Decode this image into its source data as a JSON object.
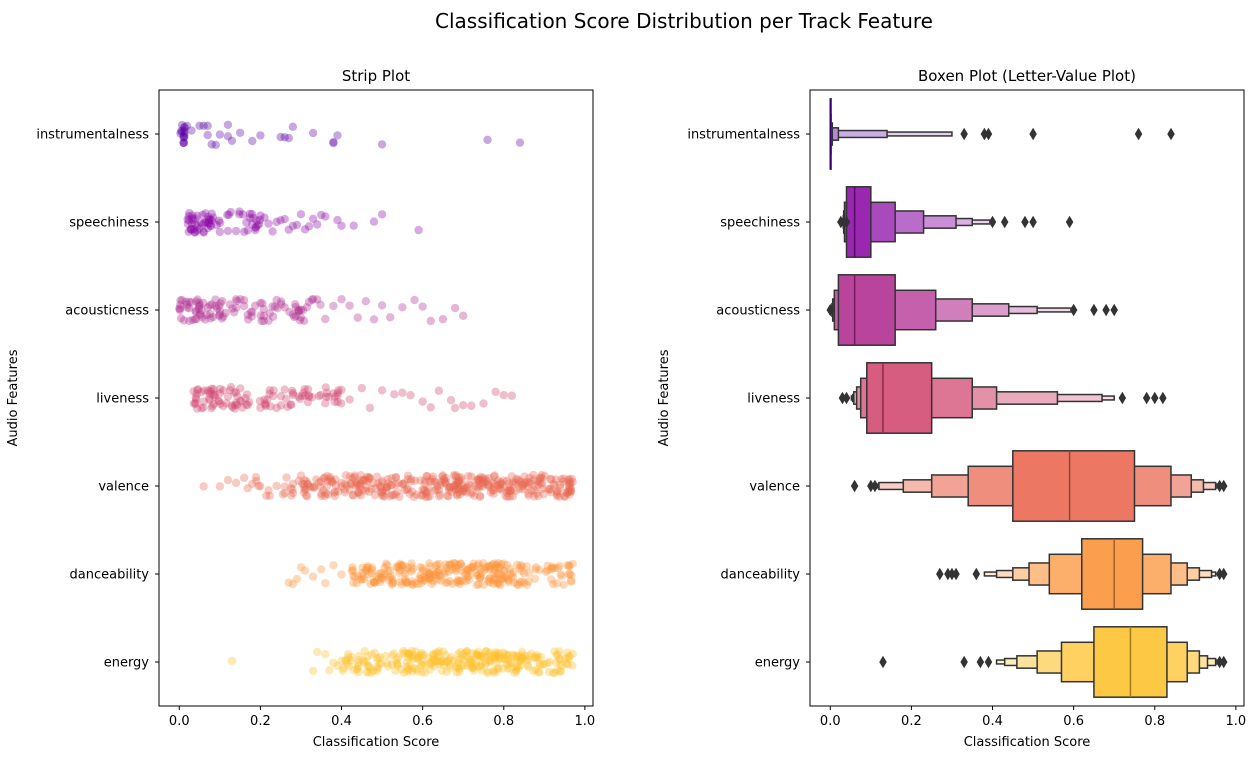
{
  "suptitle": "Classification Score Distribution per Track Feature",
  "chart_data": [
    {
      "type": "scatter",
      "subtype": "strip",
      "title": "Strip Plot",
      "xlabel": "Classification Score",
      "ylabel": "Audio Features",
      "xlim": [
        -0.05,
        1.02
      ],
      "xticks": [
        "0.0",
        "0.2",
        "0.4",
        "0.6",
        "0.8",
        "1.0"
      ],
      "grid": false,
      "categories": [
        "instrumentalness",
        "speechiness",
        "acousticness",
        "liveness",
        "valence",
        "danceability",
        "energy"
      ],
      "colors": [
        "#5b02a3",
        "#8b0aa5",
        "#b02a8f",
        "#d0466f",
        "#e9664f",
        "#fb9237",
        "#fdc12a"
      ],
      "point_alpha": 0.35,
      "series": [
        {
          "category": "instrumentalness",
          "dense": [
            [
              0.0,
              0.02,
              0.95
            ]
          ],
          "points": [
            0.03,
            0.05,
            0.06,
            0.07,
            0.07,
            0.08,
            0.09,
            0.1,
            0.12,
            0.12,
            0.13,
            0.15,
            0.18,
            0.2,
            0.25,
            0.26,
            0.27,
            0.28,
            0.33,
            0.38,
            0.38,
            0.39,
            0.5,
            0.76,
            0.84
          ]
        },
        {
          "category": "speechiness",
          "dense": [
            [
              0.02,
              0.1,
              0.7
            ],
            [
              0.1,
              0.2,
              0.25
            ]
          ],
          "points": [
            0.04,
            0.05,
            0.06,
            0.08,
            0.1,
            0.12,
            0.14,
            0.16,
            0.18,
            0.2,
            0.21,
            0.22,
            0.23,
            0.24,
            0.25,
            0.26,
            0.27,
            0.28,
            0.29,
            0.3,
            0.31,
            0.32,
            0.33,
            0.34,
            0.35,
            0.36,
            0.39,
            0.4,
            0.43,
            0.48,
            0.5,
            0.59
          ]
        },
        {
          "category": "acousticness",
          "dense": [
            [
              0.0,
              0.12,
              0.55
            ],
            [
              0.12,
              0.35,
              0.25
            ]
          ],
          "points": [
            0.02,
            0.05,
            0.08,
            0.1,
            0.14,
            0.16,
            0.18,
            0.2,
            0.22,
            0.24,
            0.26,
            0.28,
            0.3,
            0.32,
            0.34,
            0.36,
            0.38,
            0.4,
            0.42,
            0.44,
            0.46,
            0.48,
            0.5,
            0.52,
            0.55,
            0.58,
            0.6,
            0.62,
            0.65,
            0.68,
            0.7
          ]
        },
        {
          "category": "liveness",
          "dense": [
            [
              0.03,
              0.15,
              0.5
            ],
            [
              0.15,
              0.4,
              0.3
            ]
          ],
          "points": [
            0.04,
            0.06,
            0.08,
            0.1,
            0.12,
            0.14,
            0.2,
            0.24,
            0.28,
            0.32,
            0.36,
            0.4,
            0.42,
            0.45,
            0.47,
            0.5,
            0.53,
            0.55,
            0.57,
            0.6,
            0.62,
            0.64,
            0.67,
            0.68,
            0.7,
            0.72,
            0.75,
            0.78,
            0.8,
            0.82
          ]
        },
        {
          "category": "valence",
          "dense": [
            [
              0.3,
              0.97,
              0.8
            ],
            [
              0.15,
              0.3,
              0.1
            ]
          ],
          "points": [
            0.06,
            0.1,
            0.12,
            0.14,
            0.16,
            0.18,
            0.2,
            0.22,
            0.24,
            0.26,
            0.28,
            0.3,
            0.95,
            0.96,
            0.97
          ]
        },
        {
          "category": "danceability",
          "dense": [
            [
              0.42,
              0.97,
              0.55
            ],
            [
              0.55,
              0.85,
              0.3
            ]
          ],
          "points": [
            0.27,
            0.28,
            0.29,
            0.3,
            0.31,
            0.33,
            0.35,
            0.36,
            0.38,
            0.4,
            0.96,
            0.97
          ]
        },
        {
          "category": "energy",
          "dense": [
            [
              0.4,
              0.97,
              0.55
            ],
            [
              0.55,
              0.9,
              0.3
            ]
          ],
          "points": [
            0.13,
            0.33,
            0.34,
            0.36,
            0.37,
            0.38,
            0.39,
            0.96,
            0.97
          ]
        }
      ]
    },
    {
      "type": "boxen",
      "title": "Boxen Plot (Letter-Value Plot)",
      "xlabel": "Classification Score",
      "ylabel": "Audio Features",
      "xlim": [
        -0.05,
        1.02
      ],
      "xticks": [
        "0.0",
        "0.2",
        "0.4",
        "0.6",
        "0.8",
        "1.0"
      ],
      "grid": false,
      "categories": [
        "instrumentalness",
        "speechiness",
        "acousticness",
        "liveness",
        "valence",
        "danceability",
        "energy"
      ],
      "colors": [
        "#5b02a3",
        "#8b0aa5",
        "#b02a8f",
        "#d0466f",
        "#e9664f",
        "#fb9237",
        "#fdc12a"
      ],
      "series": [
        {
          "category": "instrumentalness",
          "median": 0.0,
          "boxes": [
            [
              0.0,
              0.0
            ],
            [
              0.0,
              0.0
            ],
            [
              0.0,
              0.005
            ],
            [
              0.0,
              0.02
            ],
            [
              0.0,
              0.14
            ],
            [
              0.0,
              0.3
            ]
          ],
          "outliers": [
            0.33,
            0.38,
            0.39,
            0.5,
            0.76,
            0.84
          ]
        },
        {
          "category": "speechiness",
          "median": 0.06,
          "boxes": [
            [
              0.04,
              0.1
            ],
            [
              0.035,
              0.16
            ],
            [
              0.033,
              0.23
            ],
            [
              0.032,
              0.31
            ],
            [
              0.031,
              0.35
            ],
            [
              0.03,
              0.4
            ]
          ],
          "outliers": [
            0.026,
            0.04,
            0.4,
            0.43,
            0.48,
            0.5,
            0.59
          ]
        },
        {
          "category": "acousticness",
          "median": 0.06,
          "boxes": [
            [
              0.02,
              0.16
            ],
            [
              0.01,
              0.26
            ],
            [
              0.006,
              0.35
            ],
            [
              0.004,
              0.44
            ],
            [
              0.003,
              0.51
            ],
            [
              0.002,
              0.6
            ]
          ],
          "outliers": [
            0.0,
            0.6,
            0.65,
            0.68,
            0.7
          ]
        },
        {
          "category": "liveness",
          "median": 0.13,
          "boxes": [
            [
              0.09,
              0.25
            ],
            [
              0.075,
              0.35
            ],
            [
              0.065,
              0.41
            ],
            [
              0.058,
              0.56
            ],
            [
              0.055,
              0.67
            ],
            [
              0.052,
              0.7
            ]
          ],
          "outliers": [
            0.03,
            0.04,
            0.72,
            0.78,
            0.8,
            0.82
          ]
        },
        {
          "category": "valence",
          "median": 0.59,
          "boxes": [
            [
              0.45,
              0.75
            ],
            [
              0.34,
              0.84
            ],
            [
              0.25,
              0.89
            ],
            [
              0.18,
              0.92
            ],
            [
              0.12,
              0.95
            ],
            [
              0.1,
              0.96
            ]
          ],
          "outliers": [
            0.06,
            0.1,
            0.11,
            0.96,
            0.97
          ]
        },
        {
          "category": "danceability",
          "median": 0.7,
          "boxes": [
            [
              0.62,
              0.77
            ],
            [
              0.54,
              0.84
            ],
            [
              0.49,
              0.88
            ],
            [
              0.45,
              0.91
            ],
            [
              0.41,
              0.94
            ],
            [
              0.38,
              0.95
            ]
          ],
          "outliers": [
            0.27,
            0.29,
            0.3,
            0.31,
            0.36,
            0.96,
            0.97
          ]
        },
        {
          "category": "energy",
          "median": 0.74,
          "boxes": [
            [
              0.65,
              0.83
            ],
            [
              0.57,
              0.88
            ],
            [
              0.51,
              0.91
            ],
            [
              0.46,
              0.93
            ],
            [
              0.43,
              0.95
            ],
            [
              0.41,
              0.96
            ]
          ],
          "outliers": [
            0.13,
            0.33,
            0.37,
            0.39,
            0.96,
            0.97
          ]
        }
      ]
    }
  ]
}
